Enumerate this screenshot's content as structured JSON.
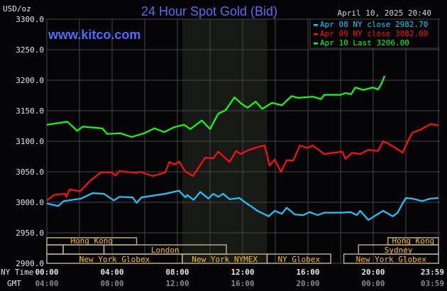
{
  "header": {
    "title": "24 Hour Spot Gold (Bid)",
    "site": "www.kitco.com",
    "datetime": "April 10, 2025 20:40",
    "unit": "USD/oz"
  },
  "colors": {
    "apr08": "#19c8ff",
    "apr09": "#ff1010",
    "apr10": "#11ff11",
    "title": "#5a6cf2",
    "session_text": "#ffc000",
    "session_border": "#b4ac7c",
    "shade": "#171915",
    "grid": "#454545"
  },
  "chart_data": {
    "type": "line",
    "title": "24 Hour Spot Gold (Bid)",
    "ylabel": "USD/oz",
    "xlabel": "NY Time",
    "ylim": [
      2900,
      3300
    ],
    "xlim": [
      0,
      24
    ],
    "grid": true,
    "legend_position": "top-right",
    "y_ticks": [
      "3300.0",
      "3250.0",
      "3200.0",
      "3150.0",
      "3100.0",
      "3050.0",
      "3000.0",
      "2950.0",
      "2900.0"
    ],
    "y_tick_values": [
      3300,
      3250,
      3200,
      3150,
      3100,
      3050,
      3000,
      2950,
      2900
    ],
    "x_ticks": [
      {
        "hour": 0,
        "ny": "00:00",
        "gmt": "04:00"
      },
      {
        "hour": 4,
        "ny": "04:00",
        "gmt": "08:00"
      },
      {
        "hour": 8,
        "ny": "08:00",
        "gmt": "12:00"
      },
      {
        "hour": 12,
        "ny": "12:00",
        "gmt": "16:00"
      },
      {
        "hour": 16,
        "ny": "16:00",
        "gmt": "20:00"
      },
      {
        "hour": 20,
        "ny": "20:00",
        "gmt": "00:00"
      },
      {
        "hour": 24,
        "ny": "23:59",
        "gmt": "03:59"
      }
    ],
    "x_row_labels": {
      "ny": "NY Time",
      "gmt": "GMT"
    },
    "shaded_hours": [
      8.3,
      13.5
    ],
    "series": [
      {
        "name": "Apr 08 NY close 2982.70",
        "color_key": "apr08",
        "x": [
          0,
          0.7,
          1.04,
          2.1,
          2.8,
          3.5,
          4.1,
          4.45,
          5.26,
          5.5,
          5.8,
          7.26,
          8.1,
          8.5,
          8.6,
          9.0,
          9.4,
          9.9,
          10.2,
          10.5,
          10.8,
          11.2,
          11.8,
          12.3,
          12.5,
          12.9,
          13.6,
          13.96,
          14.4,
          14.7,
          15.2,
          15.7,
          16.1,
          16.6,
          17.0,
          18.1,
          18.6,
          19.0,
          19.2,
          19.7,
          20.3,
          20.6,
          21.2,
          21.5,
          21.8,
          22.0,
          22.4,
          23.0,
          23.5,
          24
        ],
        "y": [
          2998,
          2994,
          3002,
          3006,
          3015,
          3014,
          3003,
          3009,
          3008,
          2999,
          3008,
          3014,
          3019,
          3008,
          3012,
          3004,
          3017,
          3006,
          3014,
          3009,
          3014,
          3005,
          3007,
          2997,
          2994,
          2986,
          2977,
          2986,
          2981,
          2991,
          2980,
          2979,
          2984,
          2979,
          2983,
          2983,
          2984,
          2979,
          2986,
          2971,
          2981,
          2986,
          2977,
          2983,
          2998,
          3007,
          3006,
          3002,
          3006,
          3007
        ]
      },
      {
        "name": "Apr 09 NY close 3082.00",
        "color_key": "apr09",
        "x": [
          0,
          0.45,
          1.1,
          1.2,
          1.4,
          2.05,
          2.65,
          3.3,
          3.95,
          4.2,
          4.45,
          5.5,
          5.7,
          6.5,
          7.26,
          7.5,
          7.85,
          8.1,
          8.5,
          8.96,
          9.3,
          9.7,
          10.2,
          10.5,
          11.2,
          11.6,
          11.9,
          12.3,
          13.0,
          13.35,
          13.65,
          13.96,
          14.35,
          14.7,
          15.1,
          15.5,
          15.96,
          16.3,
          17.0,
          18.1,
          18.3,
          18.7,
          19.2,
          19.7,
          20.3,
          20.6,
          21.0,
          21.6,
          21.8,
          22.1,
          22.4,
          22.9,
          23.5,
          24
        ],
        "y": [
          3003,
          3012,
          3014,
          3009,
          3021,
          3018,
          3035,
          3049,
          3049,
          3044,
          3051,
          3048,
          3050,
          3043,
          3049,
          3066,
          3062,
          3067,
          3050,
          3043,
          3057,
          3073,
          3072,
          3083,
          3066,
          3084,
          3079,
          3085,
          3091,
          3093,
          3060,
          3070,
          3050,
          3069,
          3068,
          3093,
          3089,
          3093,
          3079,
          3083,
          3071,
          3081,
          3079,
          3086,
          3084,
          3100,
          3095,
          3085,
          3081,
          3099,
          3114,
          3119,
          3128,
          3126
        ]
      },
      {
        "name": "Apr 10 Last 3206.00",
        "color_key": "apr10",
        "x": [
          0,
          1.26,
          1.87,
          2.2,
          3.4,
          3.7,
          4.5,
          5.2,
          5.96,
          6.6,
          7.2,
          7.8,
          8.4,
          8.8,
          9.5,
          10.0,
          10.5,
          10.96,
          11.5,
          11.9,
          12.3,
          12.8,
          13.2,
          13.8,
          14.4,
          15.0,
          15.4,
          16.3,
          16.8,
          17.0,
          18.0,
          18.3,
          18.65,
          18.9,
          19.4,
          19.96,
          20.3,
          20.5,
          20.7
        ],
        "y": [
          3127,
          3132,
          3117,
          3124,
          3121,
          3112,
          3113,
          3107,
          3113,
          3121,
          3115,
          3123,
          3127,
          3120,
          3134,
          3120,
          3145,
          3151,
          3172,
          3162,
          3155,
          3165,
          3153,
          3163,
          3159,
          3174,
          3171,
          3173,
          3169,
          3176,
          3176,
          3179,
          3177,
          3188,
          3184,
          3188,
          3185,
          3194,
          3207
        ]
      }
    ],
    "legend": [
      "Apr 08 NY close 2982.70",
      "Apr 09 NY close 3082.00",
      "Apr 10 Last 3206.00"
    ],
    "sessions": [
      {
        "row": 0,
        "label": "Hong Kong",
        "start": 0,
        "end": 5.5
      },
      {
        "row": 0,
        "label": "Hong Kong",
        "start": 20.9,
        "end": 24
      },
      {
        "row": 1,
        "label": "",
        "start": 0,
        "end": 1.0
      },
      {
        "row": 1,
        "label": "",
        "start": 1.0,
        "end": 3.5
      },
      {
        "row": 1,
        "label": "London",
        "start": 3.5,
        "end": 11.0
      },
      {
        "row": 1,
        "label": "Sydney",
        "start": 19.1,
        "end": 24
      },
      {
        "row": 2,
        "label": "New York Globex",
        "start": 0,
        "end": 8.3
      },
      {
        "row": 2,
        "label": "New York NYMEX",
        "start": 8.3,
        "end": 13.5
      },
      {
        "row": 2,
        "label": "NY Globex",
        "start": 13.5,
        "end": 17.4
      },
      {
        "row": 2,
        "label": "New York Globex",
        "start": 18.2,
        "end": 24
      }
    ]
  }
}
